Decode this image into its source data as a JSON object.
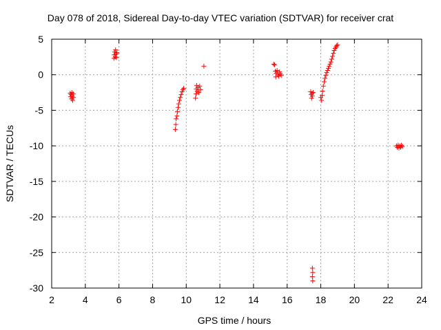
{
  "chart_data": {
    "type": "scatter",
    "title": "Day 078 of 2018, Sidereal Day-to-day VTEC variation (SDTVAR) for receiver crat",
    "xlabel": "GPS time / hours",
    "ylabel": "SDTVAR / TECUs",
    "xlim": [
      2,
      24
    ],
    "ylim": [
      -30,
      5
    ],
    "xticks": [
      "2",
      "4",
      "6",
      "8",
      "10",
      "12",
      "14",
      "16",
      "18",
      "20",
      "22",
      "24"
    ],
    "yticks": [
      "5",
      "0",
      "-5",
      "-10",
      "-15",
      "-20",
      "-25",
      "-30"
    ],
    "grid": true,
    "marker": "+",
    "color": "#ff0000",
    "series": [
      {
        "name": "SDTVAR",
        "points": [
          [
            3.1,
            -2.6
          ],
          [
            3.12,
            -3.1
          ],
          [
            3.15,
            -2.8
          ],
          [
            3.18,
            -3.4
          ],
          [
            3.2,
            -2.5
          ],
          [
            3.22,
            -3.0
          ],
          [
            3.25,
            -3.6
          ],
          [
            3.28,
            -2.7
          ],
          [
            3.3,
            -3.2
          ],
          [
            5.7,
            2.3
          ],
          [
            5.72,
            2.8
          ],
          [
            5.75,
            3.2
          ],
          [
            5.78,
            2.5
          ],
          [
            5.8,
            3.5
          ],
          [
            5.82,
            2.9
          ],
          [
            5.85,
            2.4
          ],
          [
            5.88,
            3.1
          ],
          [
            9.35,
            -7.7
          ],
          [
            9.38,
            -7.0
          ],
          [
            9.4,
            -6.2
          ],
          [
            9.45,
            -5.8
          ],
          [
            9.48,
            -5.2
          ],
          [
            9.52,
            -4.6
          ],
          [
            9.55,
            -4.1
          ],
          [
            9.6,
            -3.6
          ],
          [
            9.65,
            -3.2
          ],
          [
            9.7,
            -2.8
          ],
          [
            9.75,
            -2.4
          ],
          [
            9.8,
            -2.1
          ],
          [
            9.85,
            -1.9
          ],
          [
            10.55,
            -3.3
          ],
          [
            10.58,
            -2.7
          ],
          [
            10.6,
            -2.0
          ],
          [
            10.62,
            -1.5
          ],
          [
            10.65,
            -2.3
          ],
          [
            10.7,
            -1.8
          ],
          [
            10.75,
            -2.5
          ],
          [
            10.8,
            -1.6
          ],
          [
            10.85,
            -2.1
          ],
          [
            11.05,
            1.2
          ],
          [
            15.2,
            1.5
          ],
          [
            15.25,
            1.4
          ],
          [
            15.3,
            0.5
          ],
          [
            15.32,
            -0.3
          ],
          [
            15.35,
            0.2
          ],
          [
            15.4,
            0.6
          ],
          [
            15.45,
            0.0
          ],
          [
            15.5,
            -0.2
          ],
          [
            15.55,
            0.4
          ],
          [
            15.6,
            0.1
          ],
          [
            15.65,
            -0.1
          ],
          [
            17.4,
            -2.4
          ],
          [
            17.42,
            -2.8
          ],
          [
            17.45,
            -3.3
          ],
          [
            17.48,
            -2.6
          ],
          [
            17.5,
            -3.0
          ],
          [
            17.55,
            -2.5
          ],
          [
            17.5,
            -27.2
          ],
          [
            17.52,
            -27.8
          ],
          [
            17.5,
            -28.4
          ],
          [
            17.52,
            -29.0
          ],
          [
            18.0,
            -3.2
          ],
          [
            18.05,
            -3.6
          ],
          [
            18.08,
            -2.9
          ],
          [
            18.1,
            -2.3
          ],
          [
            18.15,
            -1.6
          ],
          [
            18.2,
            -1.0
          ],
          [
            18.25,
            -0.5
          ],
          [
            18.3,
            -0.1
          ],
          [
            18.35,
            0.3
          ],
          [
            18.4,
            0.6
          ],
          [
            18.45,
            0.9
          ],
          [
            18.5,
            1.2
          ],
          [
            18.55,
            1.5
          ],
          [
            18.6,
            1.8
          ],
          [
            18.65,
            2.2
          ],
          [
            18.7,
            2.6
          ],
          [
            18.75,
            3.0
          ],
          [
            18.8,
            3.4
          ],
          [
            18.85,
            3.7
          ],
          [
            18.9,
            3.9
          ],
          [
            18.95,
            4.1
          ],
          [
            19.0,
            4.2
          ],
          [
            22.5,
            -10.0
          ],
          [
            22.55,
            -10.2
          ],
          [
            22.6,
            -9.9
          ],
          [
            22.65,
            -10.3
          ],
          [
            22.7,
            -10.0
          ],
          [
            22.75,
            -10.2
          ],
          [
            22.8,
            -9.9
          ],
          [
            22.85,
            -10.1
          ]
        ]
      }
    ]
  }
}
